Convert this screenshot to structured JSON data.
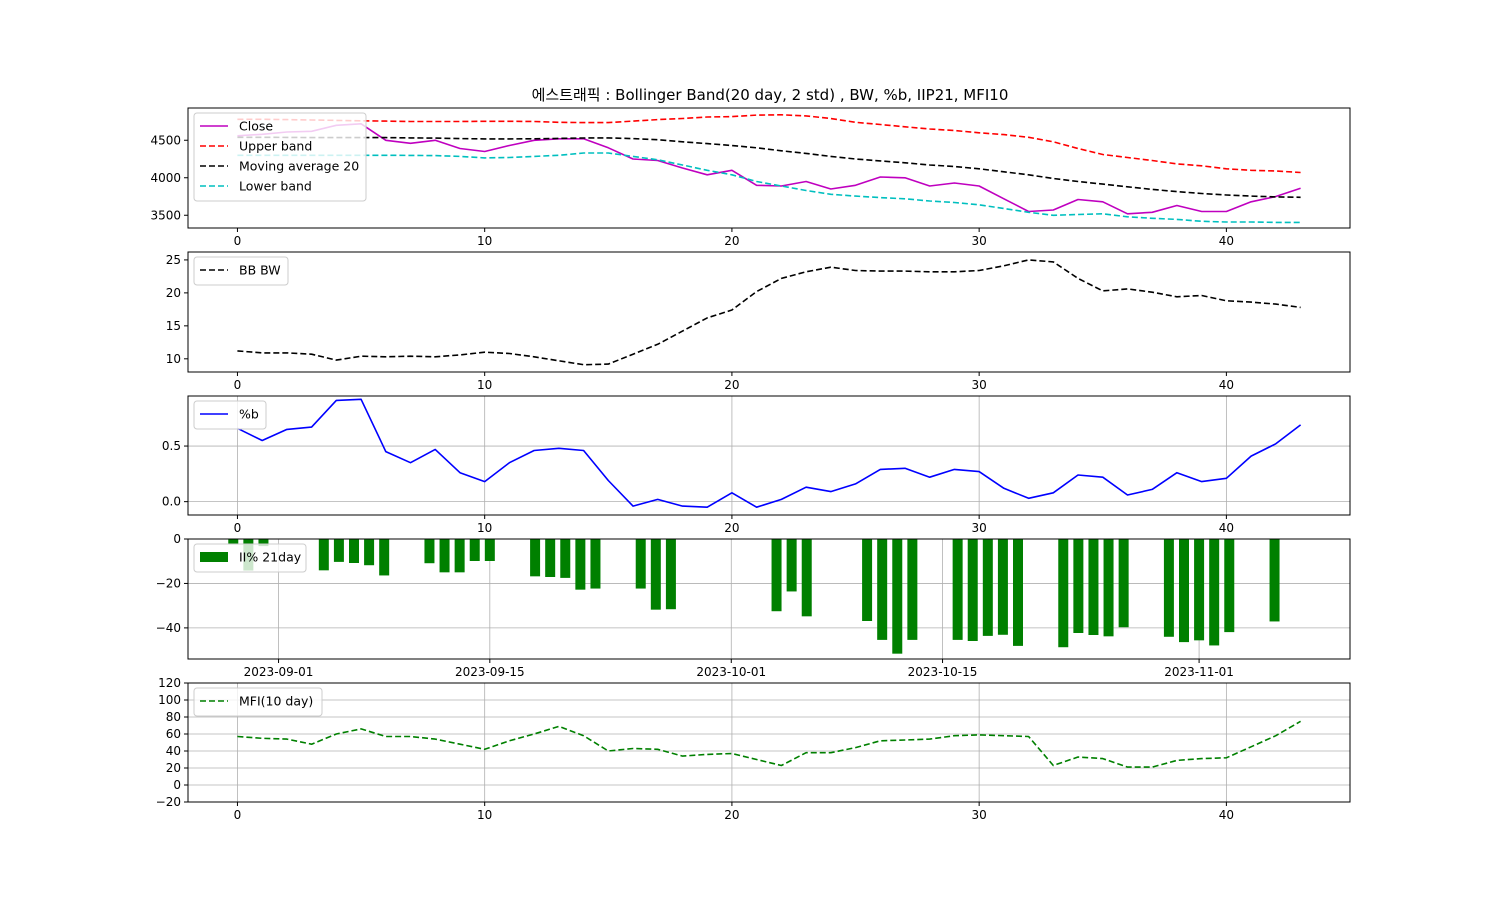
{
  "chart_data": {
    "title": "에스트래픽 : Bollinger Band(20 day, 2 std) , BW, %b, IIP21, MFI10",
    "panels": [
      {
        "id": "bollinger",
        "type": "line",
        "xlim": [
          -2,
          45
        ],
        "ylim": [
          3330,
          4930
        ],
        "xticks": [
          0,
          10,
          20,
          30,
          40
        ],
        "yticks": [
          3500,
          4000,
          4500
        ],
        "grid": false,
        "legend_position": "top-left",
        "series": [
          {
            "name": "Close",
            "color": "#bf00bf",
            "dash": "solid",
            "values": [
              4560,
              4580,
              4610,
              4620,
              4700,
              4720,
              4500,
              4460,
              4500,
              4390,
              4350,
              4430,
              4500,
              4520,
              4520,
              4400,
              4250,
              4230,
              4130,
              4040,
              4100,
              3900,
              3890,
              3950,
              3850,
              3900,
              4010,
              4000,
              3890,
              3930,
              3890,
              3720,
              3550,
              3570,
              3710,
              3680,
              3520,
              3540,
              3630,
              3550,
              3550,
              3680,
              3750,
              3860
            ]
          },
          {
            "name": "Upper band",
            "color": "#ff0000",
            "dash": "dashed",
            "values": [
              4780,
              4780,
              4775,
              4770,
              4765,
              4760,
              4755,
              4750,
              4750,
              4750,
              4752,
              4752,
              4750,
              4740,
              4735,
              4735,
              4755,
              4775,
              4790,
              4810,
              4815,
              4835,
              4840,
              4825,
              4790,
              4740,
              4710,
              4680,
              4650,
              4630,
              4600,
              4575,
              4540,
              4480,
              4390,
              4310,
              4270,
              4230,
              4185,
              4160,
              4120,
              4100,
              4090,
              4070
            ]
          },
          {
            "name": "Moving average 20",
            "color": "#000000",
            "dash": "dashed",
            "values": [
              4540,
              4540,
              4538,
              4536,
              4535,
              4535,
              4535,
              4532,
              4528,
              4522,
              4518,
              4518,
              4520,
              4525,
              4530,
              4532,
              4522,
              4508,
              4480,
              4455,
              4430,
              4400,
              4360,
              4325,
              4285,
              4250,
              4225,
              4200,
              4170,
              4150,
              4120,
              4080,
              4040,
              3990,
              3950,
              3915,
              3880,
              3845,
              3815,
              3790,
              3770,
              3755,
              3745,
              3740
            ]
          },
          {
            "name": "Lower band",
            "color": "#00bfbf",
            "dash": "dashed",
            "values": [
              4300,
              4300,
              4300,
              4300,
              4300,
              4300,
              4300,
              4298,
              4295,
              4285,
              4265,
              4270,
              4285,
              4300,
              4330,
              4330,
              4285,
              4240,
              4170,
              4100,
              4040,
              3950,
              3890,
              3830,
              3780,
              3755,
              3735,
              3720,
              3690,
              3670,
              3640,
              3590,
              3540,
              3500,
              3510,
              3520,
              3480,
              3460,
              3445,
              3420,
              3410,
              3410,
              3405,
              3405
            ]
          }
        ]
      },
      {
        "id": "bandwidth",
        "type": "line",
        "xlim": [
          -2,
          45
        ],
        "ylim": [
          8,
          26.2
        ],
        "xticks": [
          0,
          10,
          20,
          30,
          40
        ],
        "yticks": [
          10,
          15,
          20,
          25
        ],
        "grid": false,
        "legend_position": "top-left",
        "series": [
          {
            "name": "BB BW",
            "color": "#000000",
            "dash": "dashed",
            "values": [
              11.2,
              10.9,
              10.9,
              10.7,
              9.8,
              10.4,
              10.3,
              10.4,
              10.3,
              10.6,
              11.0,
              10.8,
              10.3,
              9.7,
              9.1,
              9.2,
              10.7,
              12.2,
              14.2,
              16.2,
              17.4,
              20.2,
              22.2,
              23.2,
              23.9,
              23.4,
              23.3,
              23.3,
              23.2,
              23.2,
              23.4,
              24.1,
              25.0,
              24.7,
              22.2,
              20.3,
              20.6,
              20.1,
              19.4,
              19.6,
              18.8,
              18.6,
              18.3,
              17.8
            ]
          }
        ]
      },
      {
        "id": "percent-b",
        "type": "line",
        "xlim": [
          -2,
          45
        ],
        "ylim": [
          -0.12,
          0.95
        ],
        "xticks": [
          0,
          10,
          20,
          30,
          40
        ],
        "yticks": [
          0.0,
          0.5
        ],
        "ytick_labels": [
          "0.0",
          "0.5"
        ],
        "grid": true,
        "legend_position": "top-left",
        "series": [
          {
            "name": "%b",
            "color": "#0000ff",
            "dash": "solid",
            "values": [
              0.66,
              0.55,
              0.65,
              0.67,
              0.91,
              0.92,
              0.45,
              0.35,
              0.47,
              0.26,
              0.18,
              0.35,
              0.46,
              0.48,
              0.46,
              0.19,
              -0.04,
              0.02,
              -0.04,
              -0.05,
              0.08,
              -0.05,
              0.02,
              0.13,
              0.09,
              0.16,
              0.29,
              0.3,
              0.22,
              0.29,
              0.27,
              0.12,
              0.03,
              0.08,
              0.24,
              0.22,
              0.06,
              0.11,
              0.26,
              0.18,
              0.21,
              0.41,
              0.52,
              0.69
            ]
          }
        ]
      },
      {
        "id": "intraday-intensity",
        "type": "bar",
        "xlim": [
          "2023-08-26",
          "2023-11-11"
        ],
        "ylim": [
          -54,
          0
        ],
        "yticks": [
          0,
          -20,
          -40
        ],
        "ytick_labels": [
          "0",
          "−20",
          "−40"
        ],
        "xticks": [
          "2023-09-01",
          "2023-09-15",
          "2023-10-01",
          "2023-10-15",
          "2023-11-01"
        ],
        "grid": true,
        "legend_position": "top-left",
        "series": [
          {
            "name": "II% 21day",
            "color": "#008000",
            "dates": [
              "2023-08-29",
              "2023-08-30",
              "2023-08-31",
              "2023-09-04",
              "2023-09-05",
              "2023-09-06",
              "2023-09-07",
              "2023-09-08",
              "2023-09-11",
              "2023-09-12",
              "2023-09-13",
              "2023-09-14",
              "2023-09-15",
              "2023-09-18",
              "2023-09-19",
              "2023-09-20",
              "2023-09-21",
              "2023-09-22",
              "2023-09-25",
              "2023-09-26",
              "2023-09-27",
              "2023-10-04",
              "2023-10-05",
              "2023-10-06",
              "2023-10-10",
              "2023-10-11",
              "2023-10-12",
              "2023-10-13",
              "2023-10-16",
              "2023-10-17",
              "2023-10-18",
              "2023-10-19",
              "2023-10-20",
              "2023-10-23",
              "2023-10-24",
              "2023-10-25",
              "2023-10-26",
              "2023-10-27",
              "2023-10-30",
              "2023-10-31",
              "2023-11-01",
              "2023-11-02",
              "2023-11-03",
              "2023-11-06"
            ],
            "values": [
              -2.5,
              -14.2,
              -3.2,
              -14.1,
              -10.3,
              -10.8,
              -11.8,
              -16.4,
              -10.9,
              -15.0,
              -15.0,
              -9.9,
              -9.9,
              -16.8,
              -17.1,
              -17.5,
              -22.8,
              -22.3,
              -22.3,
              -31.8,
              -31.6,
              -32.5,
              -23.6,
              -34.8,
              -36.9,
              -45.4,
              -51.6,
              -45.4,
              -45.4,
              -45.9,
              -43.6,
              -43.1,
              -48.1,
              -48.7,
              -42.3,
              -43.2,
              -43.8,
              -39.7,
              -44.0,
              -46.4,
              -45.6,
              -47.9,
              -41.9,
              -37.1
            ]
          }
        ]
      },
      {
        "id": "money-flow",
        "type": "line",
        "xlim": [
          -2,
          45
        ],
        "ylim": [
          -20,
          120
        ],
        "xticks": [
          0,
          10,
          20,
          30,
          40
        ],
        "yticks": [
          -20,
          0,
          20,
          40,
          60,
          80,
          100,
          120
        ],
        "ytick_labels": [
          "−20",
          "0",
          "20",
          "40",
          "60",
          "80",
          "100",
          "120"
        ],
        "grid": true,
        "legend_position": "top-left",
        "series": [
          {
            "name": "MFI(10 day)",
            "color": "#008000",
            "dash": "dashed",
            "values": [
              57,
              55,
              54,
              48,
              60,
              66,
              57,
              57,
              54,
              48,
              42,
              52,
              60,
              69,
              58,
              40,
              43,
              42,
              34,
              36,
              37,
              30,
              23,
              38,
              38,
              44,
              52,
              53,
              54,
              58,
              59,
              58,
              57,
              23,
              33,
              31,
              21,
              21,
              29,
              31,
              32,
              45,
              58,
              75
            ]
          }
        ]
      }
    ]
  }
}
